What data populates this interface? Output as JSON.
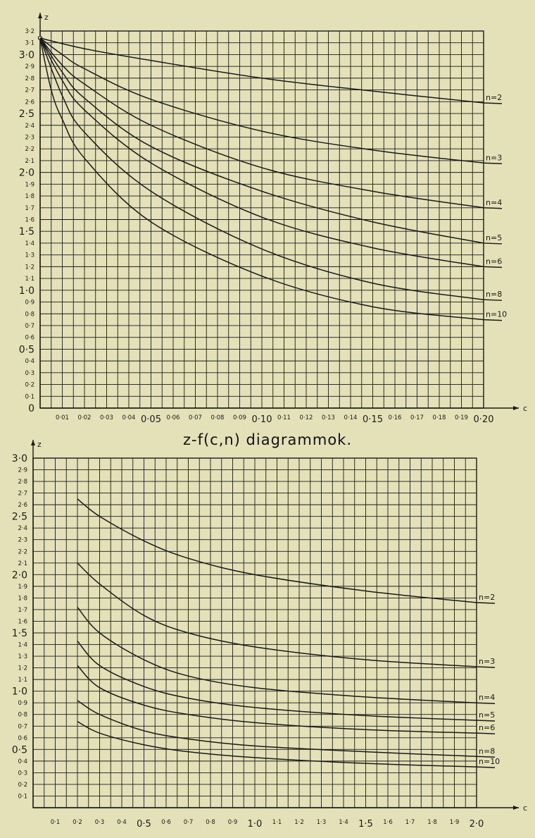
{
  "caption": "z-f(c,n) diagrammok.",
  "colors": {
    "background": "#e4e1b8",
    "ink": "#1a1a1a"
  },
  "chart_data": [
    {
      "type": "line",
      "xlabel": "c",
      "ylabel": "z",
      "xlim": [
        0,
        0.2
      ],
      "ylim": [
        0,
        3.2
      ],
      "x_ticks": [
        {
          "v": 0.01,
          "t": "0·01"
        },
        {
          "v": 0.02,
          "t": "0·02"
        },
        {
          "v": 0.03,
          "t": "0·03"
        },
        {
          "v": 0.04,
          "t": "0·04"
        },
        {
          "v": 0.05,
          "t": "0·05",
          "major": true
        },
        {
          "v": 0.06,
          "t": "0·06"
        },
        {
          "v": 0.07,
          "t": "0·07"
        },
        {
          "v": 0.08,
          "t": "0·08"
        },
        {
          "v": 0.09,
          "t": "0·09"
        },
        {
          "v": 0.1,
          "t": "0·10",
          "major": true
        },
        {
          "v": 0.11,
          "t": "0·11"
        },
        {
          "v": 0.12,
          "t": "0·12"
        },
        {
          "v": 0.13,
          "t": "0·13"
        },
        {
          "v": 0.14,
          "t": "0·14"
        },
        {
          "v": 0.15,
          "t": "0·15",
          "major": true
        },
        {
          "v": 0.16,
          "t": "0·16"
        },
        {
          "v": 0.17,
          "t": "0·17"
        },
        {
          "v": 0.18,
          "t": "0·18"
        },
        {
          "v": 0.19,
          "t": "0·19"
        },
        {
          "v": 0.2,
          "t": "0·20",
          "major": true
        }
      ],
      "y_ticks": [
        {
          "v": 0,
          "t": "0",
          "major": true
        },
        {
          "v": 0.1,
          "t": "0·1"
        },
        {
          "v": 0.2,
          "t": "0·2"
        },
        {
          "v": 0.3,
          "t": "0·3"
        },
        {
          "v": 0.4,
          "t": "0·4"
        },
        {
          "v": 0.5,
          "t": "0·5",
          "major": true
        },
        {
          "v": 0.6,
          "t": "0·6"
        },
        {
          "v": 0.7,
          "t": "0·7"
        },
        {
          "v": 0.8,
          "t": "0·8"
        },
        {
          "v": 0.9,
          "t": "0·9"
        },
        {
          "v": 1.0,
          "t": "1·0",
          "major": true
        },
        {
          "v": 1.1,
          "t": "1·1"
        },
        {
          "v": 1.2,
          "t": "1·2"
        },
        {
          "v": 1.3,
          "t": "1·3"
        },
        {
          "v": 1.4,
          "t": "1·4"
        },
        {
          "v": 1.5,
          "t": "1·5",
          "major": true
        },
        {
          "v": 1.6,
          "t": "1·6"
        },
        {
          "v": 1.7,
          "t": "1·7"
        },
        {
          "v": 1.8,
          "t": "1·8"
        },
        {
          "v": 1.9,
          "t": "1·9"
        },
        {
          "v": 2.0,
          "t": "2·0",
          "major": true
        },
        {
          "v": 2.1,
          "t": "2·1"
        },
        {
          "v": 2.2,
          "t": "2·2"
        },
        {
          "v": 2.3,
          "t": "2·3"
        },
        {
          "v": 2.4,
          "t": "2·4"
        },
        {
          "v": 2.5,
          "t": "2·5",
          "major": true
        },
        {
          "v": 2.6,
          "t": "2·6"
        },
        {
          "v": 2.7,
          "t": "2·7"
        },
        {
          "v": 2.8,
          "t": "2·8"
        },
        {
          "v": 2.9,
          "t": "2·9"
        },
        {
          "v": 3.0,
          "t": "3·0",
          "major": true
        },
        {
          "v": 3.1,
          "t": "3·1"
        },
        {
          "v": 3.2,
          "t": "3·2"
        }
      ],
      "series": [
        {
          "name": "n=2",
          "x": [
            0,
            0.02,
            0.05,
            0.1,
            0.15,
            0.2
          ],
          "y": [
            3.14,
            3.05,
            2.95,
            2.8,
            2.69,
            2.59
          ]
        },
        {
          "name": "n=3",
          "x": [
            0,
            0.01,
            0.02,
            0.05,
            0.1,
            0.15,
            0.2
          ],
          "y": [
            3.14,
            3.0,
            2.88,
            2.62,
            2.35,
            2.19,
            2.08
          ]
        },
        {
          "name": "n=4",
          "x": [
            0,
            0.01,
            0.02,
            0.05,
            0.1,
            0.15,
            0.2
          ],
          "y": [
            3.14,
            2.91,
            2.75,
            2.4,
            2.04,
            1.84,
            1.7
          ]
        },
        {
          "name": "n=5",
          "x": [
            0,
            0.01,
            0.02,
            0.05,
            0.1,
            0.15,
            0.2
          ],
          "y": [
            3.14,
            2.85,
            2.63,
            2.22,
            1.84,
            1.58,
            1.4
          ]
        },
        {
          "name": "n=6",
          "x": [
            0,
            0.01,
            0.02,
            0.05,
            0.1,
            0.15,
            0.2
          ],
          "y": [
            3.14,
            2.78,
            2.53,
            2.08,
            1.62,
            1.36,
            1.2
          ]
        },
        {
          "name": "n=8",
          "x": [
            0,
            0.01,
            0.02,
            0.05,
            0.1,
            0.15,
            0.2
          ],
          "y": [
            3.14,
            2.65,
            2.34,
            1.84,
            1.35,
            1.06,
            0.92
          ]
        },
        {
          "name": "n=10",
          "x": [
            0,
            0.005,
            0.01,
            0.02,
            0.05,
            0.1,
            0.15,
            0.2
          ],
          "y": [
            3.14,
            2.7,
            2.45,
            2.12,
            1.58,
            1.12,
            0.86,
            0.75
          ]
        }
      ]
    },
    {
      "type": "line",
      "xlabel": "c",
      "ylabel": "z",
      "xlim": [
        0,
        2.0
      ],
      "ylim": [
        0,
        3.0
      ],
      "x_ticks": [
        {
          "v": 0.1,
          "t": "0·1"
        },
        {
          "v": 0.2,
          "t": "0·2"
        },
        {
          "v": 0.3,
          "t": "0·3"
        },
        {
          "v": 0.4,
          "t": "0·4"
        },
        {
          "v": 0.5,
          "t": "0·5",
          "major": true
        },
        {
          "v": 0.6,
          "t": "0·6"
        },
        {
          "v": 0.7,
          "t": "0·7"
        },
        {
          "v": 0.8,
          "t": "0·8"
        },
        {
          "v": 0.9,
          "t": "0·9"
        },
        {
          "v": 1.0,
          "t": "1·0",
          "major": true
        },
        {
          "v": 1.1,
          "t": "1·1"
        },
        {
          "v": 1.2,
          "t": "1·2"
        },
        {
          "v": 1.3,
          "t": "1·3"
        },
        {
          "v": 1.4,
          "t": "1·4"
        },
        {
          "v": 1.5,
          "t": "1·5",
          "major": true
        },
        {
          "v": 1.6,
          "t": "1·6"
        },
        {
          "v": 1.7,
          "t": "1·7"
        },
        {
          "v": 1.8,
          "t": "1·8"
        },
        {
          "v": 1.9,
          "t": "1·9"
        },
        {
          "v": 2.0,
          "t": "2·0",
          "major": true
        }
      ],
      "y_ticks": [
        {
          "v": 0.1,
          "t": "0·1"
        },
        {
          "v": 0.2,
          "t": "0·2"
        },
        {
          "v": 0.3,
          "t": "0·3"
        },
        {
          "v": 0.4,
          "t": "0·4"
        },
        {
          "v": 0.5,
          "t": "0·5",
          "major": true
        },
        {
          "v": 0.6,
          "t": "0·6"
        },
        {
          "v": 0.7,
          "t": "0·7"
        },
        {
          "v": 0.8,
          "t": "0·8"
        },
        {
          "v": 0.9,
          "t": "0·9"
        },
        {
          "v": 1.0,
          "t": "1·0",
          "major": true
        },
        {
          "v": 1.1,
          "t": "1·1"
        },
        {
          "v": 1.2,
          "t": "1·2"
        },
        {
          "v": 1.3,
          "t": "1·3"
        },
        {
          "v": 1.4,
          "t": "1·4"
        },
        {
          "v": 1.5,
          "t": "1·5",
          "major": true
        },
        {
          "v": 1.6,
          "t": "1·6"
        },
        {
          "v": 1.7,
          "t": "1·7"
        },
        {
          "v": 1.8,
          "t": "1·8"
        },
        {
          "v": 1.9,
          "t": "1·9"
        },
        {
          "v": 2.0,
          "t": "2·0",
          "major": true
        },
        {
          "v": 2.1,
          "t": "2·1"
        },
        {
          "v": 2.2,
          "t": "2·2"
        },
        {
          "v": 2.3,
          "t": "2·3"
        },
        {
          "v": 2.4,
          "t": "2·4"
        },
        {
          "v": 2.5,
          "t": "2·5",
          "major": true
        },
        {
          "v": 2.6,
          "t": "2·6"
        },
        {
          "v": 2.7,
          "t": "2·7"
        },
        {
          "v": 2.8,
          "t": "2·8"
        },
        {
          "v": 2.9,
          "t": "2·9"
        },
        {
          "v": 3.0,
          "t": "3·0",
          "major": true
        }
      ],
      "series": [
        {
          "name": "n=2",
          "x": [
            0.2,
            0.3,
            0.5,
            0.7,
            1.0,
            1.5,
            2.0
          ],
          "y": [
            2.65,
            2.5,
            2.29,
            2.14,
            2.0,
            1.86,
            1.76
          ]
        },
        {
          "name": "n=3",
          "x": [
            0.2,
            0.3,
            0.5,
            0.7,
            1.0,
            1.5,
            2.0
          ],
          "y": [
            2.1,
            1.92,
            1.65,
            1.5,
            1.38,
            1.27,
            1.21
          ]
        },
        {
          "name": "n=4",
          "x": [
            0.2,
            0.3,
            0.5,
            0.7,
            1.0,
            1.5,
            2.0
          ],
          "y": [
            1.72,
            1.5,
            1.27,
            1.13,
            1.03,
            0.95,
            0.9
          ]
        },
        {
          "name": "n=5",
          "x": [
            0.2,
            0.3,
            0.5,
            0.7,
            1.0,
            1.5,
            2.0
          ],
          "y": [
            1.43,
            1.22,
            1.04,
            0.94,
            0.86,
            0.79,
            0.75
          ]
        },
        {
          "name": "n=6",
          "x": [
            0.2,
            0.3,
            0.5,
            0.7,
            1.0,
            1.5,
            2.0
          ],
          "y": [
            1.22,
            1.03,
            0.88,
            0.8,
            0.73,
            0.67,
            0.64
          ]
        },
        {
          "name": "n=8",
          "x": [
            0.2,
            0.3,
            0.5,
            0.7,
            1.0,
            1.5,
            2.0
          ],
          "y": [
            0.92,
            0.8,
            0.66,
            0.59,
            0.53,
            0.48,
            0.44
          ]
        },
        {
          "name": "n=10",
          "x": [
            0.2,
            0.3,
            0.5,
            0.7,
            1.0,
            1.5,
            2.0
          ],
          "y": [
            0.74,
            0.64,
            0.54,
            0.48,
            0.43,
            0.38,
            0.35
          ]
        }
      ]
    }
  ]
}
